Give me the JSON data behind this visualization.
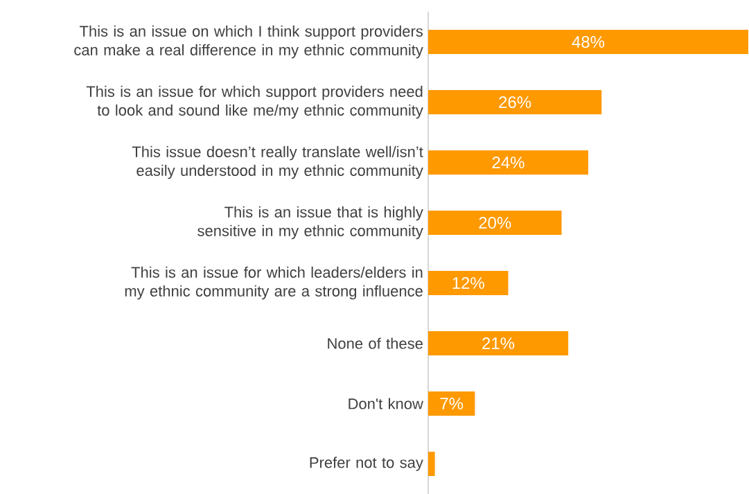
{
  "chart_data": {
    "type": "bar",
    "orientation": "horizontal",
    "categories": [
      "This is an issue on which I think support providers can make a real difference in my ethnic community",
      "This is an issue for which support providers need to look and sound like me/my ethnic community",
      "This issue doesn’t really translate well/isn’t easily understood in my ethnic community",
      "This is an issue that is highly sensitive in my ethnic community",
      "This is an issue for which leaders/elders in my ethnic community are a strong influence",
      "None of these",
      "Don't know",
      "Prefer not to say"
    ],
    "values": [
      48,
      26,
      24,
      20,
      12,
      21,
      7,
      1
    ],
    "value_labels": [
      "48%",
      "26%",
      "24%",
      "20%",
      "12%",
      "21%",
      "7%",
      null
    ],
    "color": "#ff9900"
  }
}
